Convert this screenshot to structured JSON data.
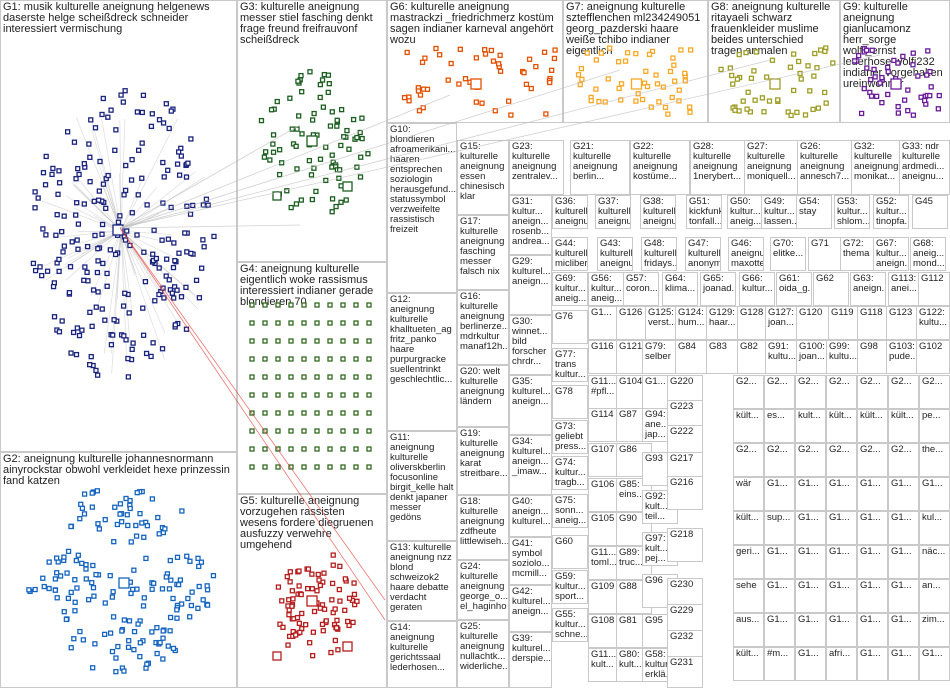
{
  "groups": [
    {
      "id": "G1",
      "text": "G1: musik kulturelle aneignung helgenews daserste helge scheißdreck schneider interessiert vermischung",
      "color": "#1a237e"
    },
    {
      "id": "G2",
      "text": "G2: aneignung kulturelle johannesnormann ainyrockstar obwohl verkleidet hexe prinzessin fand katzen",
      "color": "#1565c0"
    },
    {
      "id": "G3",
      "text": "G3: kulturelle aneignung messer stiel fasching denkt frage freund freifrauvonf scheißdreck",
      "color": "#1b5e20"
    },
    {
      "id": "G4",
      "text": "G4: aneignung kulturelle eigentlich woke rassismus interessiert indianer gerade blondieren 70",
      "color": "#33691e"
    },
    {
      "id": "G5",
      "text": "G5: kulturelle aneignung vorzugehen rassisten wesens fordere diegruenen ausfuzzy verwehre umgehend",
      "color": "#b71c1c"
    },
    {
      "id": "G6",
      "text": "G6: kulturelle aneignung mastrackzi _friedrichmerz kostüm sagen indianer karneval angehört wozu",
      "color": "#e65100"
    },
    {
      "id": "G7",
      "text": "G7: aneignung kulturelle sztefflenchen ml234249051 georg_pazderski haare weiße tchibo indianer eigentlich",
      "color": "#f9a825"
    },
    {
      "id": "G8",
      "text": "G8: aneignung kulturelle ritayaeli schwarz frauenkleider muslime beides unterschied tragen anmalen",
      "color": "#9e9d24"
    },
    {
      "id": "G9",
      "text": "G9: kulturelle aneignung gianlucamonz herr_sorge wolff_ernst lederhose wolfi232 indianer vorgehalten ureinwohner",
      "color": "#6a1b9a"
    },
    {
      "id": "G10",
      "text": "G10: blondieren afroamerikani... haaren entsprechen soziologin herausgefund... statussymbol verzweifelte rassistisch freizeit",
      "color": "#555555"
    },
    {
      "id": "G11",
      "text": "G11: aneignung kulturelle oliverskberlin focusonline birgit_kelle halt denkt japaner messer gedöns",
      "color": "#555555"
    },
    {
      "id": "G12",
      "text": "G12: aneignung kulturelle khalltueten_ag fritz_panko haare purpurgracke suellentrinkt geschlechtlic...",
      "color": "#555555"
    },
    {
      "id": "G13",
      "text": "G13: kulturelle aneignung nzz blond schweizok2 haare debatte verdacht geraten",
      "color": "#555555"
    },
    {
      "id": "G14",
      "text": "G14: aneignung kulturelle gerichtssaal lederhosen...",
      "color": "#555555"
    },
    {
      "id": "G15",
      "text": "G15: kulturelle aneignung essen chinesisch klar",
      "color": "#555555"
    },
    {
      "id": "G16",
      "text": "G16: kulturelle aneignung berlinerze... mdrkultur manaf12h...",
      "color": "#555555"
    },
    {
      "id": "G17",
      "text": "G17: kulturelle aneignung fasching messer falsch nix",
      "color": "#555555"
    },
    {
      "id": "G18",
      "text": "G18: kulturelle aneignung zdfheute littlewiseh...",
      "color": "#555555"
    },
    {
      "id": "G19",
      "text": "G19: kulturelle aneignung karat streitbare...",
      "color": "#555555"
    },
    {
      "id": "G20",
      "text": "G20: welt kulturelle aneignung ländern",
      "color": "#555555"
    },
    {
      "id": "G21",
      "text": "G21: kulturelle aneignung berlin...",
      "color": "#555555"
    },
    {
      "id": "G22",
      "text": "G22: kulturelle aneignung kostüme...",
      "color": "#555555"
    },
    {
      "id": "G23",
      "text": "G23: kulturelle aneignung zentralev...",
      "color": "#555555"
    },
    {
      "id": "G24",
      "text": "G24: kulturelle aneignung george_o... el_haginho",
      "color": "#555555"
    },
    {
      "id": "G25",
      "text": "G25: kulturelle aneignung nullachtk... widerliche...",
      "color": "#555555"
    },
    {
      "id": "G26",
      "text": "G26: kulturelle aneignung annesch7...",
      "color": "#555555"
    },
    {
      "id": "G27",
      "text": "G27: kulturelle aneignung moniquell...",
      "color": "#555555"
    },
    {
      "id": "G28",
      "text": "G28: kulturelle aneignung 1nerybert...",
      "color": "#555555"
    },
    {
      "id": "G29",
      "text": "G29: kulturel... aneign...",
      "color": "#555555"
    },
    {
      "id": "G30",
      "text": "G30: winnet... bild forscher chrdr...",
      "color": "#555555"
    },
    {
      "id": "G31",
      "text": "G31: kultur... aneign... rosenb... andrea...",
      "color": "#555555"
    },
    {
      "id": "G32",
      "text": "G32: kulturelle aneignung monikat...",
      "color": "#555555"
    },
    {
      "id": "G33",
      "text": "G33: ndr kulturelle ardmedi... aneignu...",
      "color": "#555555"
    },
    {
      "id": "G34",
      "text": "G34: kulturel... aneign... _imaw...",
      "color": "#555555"
    },
    {
      "id": "G35",
      "text": "G35: kulturel... aneign...",
      "color": "#555555"
    },
    {
      "id": "G36",
      "text": "G36: kulturelle aneignu...",
      "color": "#555555"
    },
    {
      "id": "G37",
      "text": "G37: kulturelle aneignu...",
      "color": "#555555"
    },
    {
      "id": "G38",
      "text": "G38: kulturelle aneignu...",
      "color": "#555555"
    },
    {
      "id": "G39",
      "text": "G39: kulturel... derspie...",
      "color": "#555555"
    },
    {
      "id": "G40",
      "text": "G40: aneign... kulturel...",
      "color": "#555555"
    },
    {
      "id": "G41",
      "text": "G41: symbol soziolo... mcmill...",
      "color": "#555555"
    },
    {
      "id": "G42",
      "text": "G42: kulturel... aneign...",
      "color": "#555555"
    },
    {
      "id": "G43",
      "text": "G43: kulturelle aneignu...",
      "color": "#555555"
    },
    {
      "id": "G44",
      "text": "G44: kulturelle micliber...",
      "color": "#555555"
    },
    {
      "id": "G45",
      "text": "G45",
      "color": "#555555"
    },
    {
      "id": "G46",
      "text": "G46: aneignu... maxotte...",
      "color": "#555555"
    },
    {
      "id": "G47",
      "text": "G47: kulturelle anonym...",
      "color": "#555555"
    },
    {
      "id": "G48",
      "text": "G48: kulturelle fridays...",
      "color": "#555555"
    },
    {
      "id": "G49",
      "text": "G49: kultur... lassen...",
      "color": "#555555"
    },
    {
      "id": "G50",
      "text": "G50: kultur... aneig...",
      "color": "#555555"
    },
    {
      "id": "G51",
      "text": "G51: kickfunk tonfall...",
      "color": "#555555"
    },
    {
      "id": "G52",
      "text": "G52: kultur... tinopfa...",
      "color": "#555555"
    },
    {
      "id": "G53",
      "text": "G53: kultur... shlom...",
      "color": "#555555"
    },
    {
      "id": "G54",
      "text": "G54: stay",
      "color": "#555555"
    },
    {
      "id": "G55",
      "text": "G55: kultur... schne...",
      "color": "#555555"
    },
    {
      "id": "G56",
      "text": "G56: kultur... aneig...",
      "color": "#555555"
    },
    {
      "id": "G57",
      "text": "G57: coron...",
      "color": "#555555"
    },
    {
      "id": "G58",
      "text": "G58: kultur... erklä...",
      "color": "#555555"
    },
    {
      "id": "G59",
      "text": "G59: kultur... sport...",
      "color": "#555555"
    },
    {
      "id": "G60",
      "text": "G60",
      "color": "#555555"
    },
    {
      "id": "G61",
      "text": "G61: oida_g...",
      "color": "#555555"
    },
    {
      "id": "G62",
      "text": "G62",
      "color": "#555555"
    },
    {
      "id": "G63",
      "text": "G63: aneign...",
      "color": "#555555"
    },
    {
      "id": "G64",
      "text": "G64: klima...",
      "color": "#555555"
    },
    {
      "id": "G65",
      "text": "G65: joanad...",
      "color": "#555555"
    },
    {
      "id": "G66",
      "text": "G66: kultur...",
      "color": "#555555"
    },
    {
      "id": "G67",
      "text": "G67: kultur... aneign...",
      "color": "#555555"
    },
    {
      "id": "G68",
      "text": "G68: aneig... mond...",
      "color": "#555555"
    },
    {
      "id": "G69",
      "text": "G69: kultur... aneig...",
      "color": "#555555"
    },
    {
      "id": "G70",
      "text": "G70: elitke...",
      "color": "#555555"
    },
    {
      "id": "G71",
      "text": "G71",
      "color": "#555555"
    },
    {
      "id": "G72",
      "text": "G72: thema",
      "color": "#555555"
    },
    {
      "id": "G73",
      "text": "G73: geliebt press...",
      "color": "#555555"
    },
    {
      "id": "G74",
      "text": "G74: kultur... tragb...",
      "color": "#555555"
    },
    {
      "id": "G75",
      "text": "G75: sonn... aneig...",
      "color": "#555555"
    },
    {
      "id": "G76",
      "text": "G76",
      "color": "#555555"
    },
    {
      "id": "G77",
      "text": "G77: trans kultur...",
      "color": "#555555"
    },
    {
      "id": "G78",
      "text": "G78",
      "color": "#555555"
    },
    {
      "id": "G79",
      "text": "G79: selber",
      "color": "#555555"
    },
    {
      "id": "G80",
      "text": "G80: kult...",
      "color": "#555555"
    },
    {
      "id": "G81",
      "text": "G81",
      "color": "#555555"
    },
    {
      "id": "G82",
      "text": "G82",
      "color": "#555555"
    },
    {
      "id": "G83",
      "text": "G83",
      "color": "#555555"
    },
    {
      "id": "G84",
      "text": "G84",
      "color": "#555555"
    },
    {
      "id": "G85",
      "text": "G85: eins...",
      "color": "#555555"
    },
    {
      "id": "G86",
      "text": "G86",
      "color": "#555555"
    },
    {
      "id": "G87",
      "text": "G87",
      "color": "#555555"
    },
    {
      "id": "G88",
      "text": "G88",
      "color": "#555555"
    },
    {
      "id": "G89",
      "text": "G89: truc...",
      "color": "#555555"
    },
    {
      "id": "G90",
      "text": "G90",
      "color": "#555555"
    },
    {
      "id": "G91",
      "text": "G91: kultu...",
      "color": "#555555"
    },
    {
      "id": "G92",
      "text": "G92: kult... teil...",
      "color": "#555555"
    },
    {
      "id": "G93",
      "text": "G93",
      "color": "#555555"
    },
    {
      "id": "G94",
      "text": "G94: ane... jap...",
      "color": "#555555"
    },
    {
      "id": "G95",
      "text": "G95",
      "color": "#555555"
    },
    {
      "id": "G96",
      "text": "G96",
      "color": "#555555"
    },
    {
      "id": "G97",
      "text": "G97: kult... pej...",
      "color": "#555555"
    },
    {
      "id": "G98",
      "text": "G98",
      "color": "#555555"
    },
    {
      "id": "G99",
      "text": "G99: kultu...",
      "color": "#555555"
    },
    {
      "id": "G100",
      "text": "G100: joan...",
      "color": "#555555"
    },
    {
      "id": "G101",
      "text": "G1...",
      "color": "#555555"
    },
    {
      "id": "G102",
      "text": "G102",
      "color": "#555555"
    },
    {
      "id": "G103",
      "text": "G103: pude...",
      "color": "#555555"
    },
    {
      "id": "G104",
      "text": "G104",
      "color": "#555555"
    },
    {
      "id": "G105",
      "text": "G105",
      "color": "#555555"
    },
    {
      "id": "G106",
      "text": "G106",
      "color": "#555555"
    },
    {
      "id": "G107",
      "text": "G107",
      "color": "#555555"
    },
    {
      "id": "G108",
      "text": "G108",
      "color": "#555555"
    },
    {
      "id": "G109",
      "text": "G109",
      "color": "#555555"
    },
    {
      "id": "G110",
      "text": "G11... #pfl...",
      "color": "#555555"
    },
    {
      "id": "G111",
      "text": "G11... toml...",
      "color": "#555555"
    },
    {
      "id": "G112",
      "text": "G112",
      "color": "#555555"
    },
    {
      "id": "G113",
      "text": "G113: anei...",
      "color": "#555555"
    },
    {
      "id": "G114",
      "text": "G114",
      "color": "#555555"
    },
    {
      "id": "G115",
      "text": "G11... kult...",
      "color": "#555555"
    },
    {
      "id": "G116",
      "text": "G116",
      "color": "#555555"
    },
    {
      "id": "G117",
      "text": "G1...",
      "color": "#555555"
    },
    {
      "id": "G118",
      "text": "G118",
      "color": "#555555"
    },
    {
      "id": "G119",
      "text": "G119",
      "color": "#555555"
    },
    {
      "id": "G120",
      "text": "G120",
      "color": "#555555"
    },
    {
      "id": "G121",
      "text": "G121",
      "color": "#555555"
    },
    {
      "id": "G122",
      "text": "G122: kultu...",
      "color": "#555555"
    },
    {
      "id": "G123",
      "text": "G123",
      "color": "#555555"
    },
    {
      "id": "G124",
      "text": "G124: hum...",
      "color": "#555555"
    },
    {
      "id": "G125",
      "text": "G125: verst...",
      "color": "#555555"
    },
    {
      "id": "G126",
      "text": "G126",
      "color": "#555555"
    },
    {
      "id": "G127",
      "text": "G127: joan...",
      "color": "#555555"
    },
    {
      "id": "G128",
      "text": "G128",
      "color": "#555555"
    },
    {
      "id": "G129",
      "text": "G129: haar...",
      "color": "#555555"
    },
    {
      "id": "G216",
      "text": "G216",
      "color": "#555555"
    },
    {
      "id": "G217",
      "text": "G217",
      "color": "#555555"
    },
    {
      "id": "G218",
      "text": "G218",
      "color": "#555555"
    },
    {
      "id": "G220",
      "text": "G220",
      "color": "#555555"
    },
    {
      "id": "G222",
      "text": "G222",
      "color": "#555555"
    },
    {
      "id": "G223",
      "text": "G223",
      "color": "#555555"
    },
    {
      "id": "G229",
      "text": "G229",
      "color": "#555555"
    },
    {
      "id": "G230",
      "text": "G230",
      "color": "#555555"
    },
    {
      "id": "G231",
      "text": "G231",
      "color": "#555555"
    },
    {
      "id": "G232",
      "text": "G232",
      "color": "#555555"
    }
  ],
  "small_grid_labels": [
    [
      "G2...",
      "G2...",
      "G2...",
      "G2...",
      "G2...",
      "G2...",
      "G2..."
    ],
    [
      "kült...",
      "es...",
      "kult...",
      "kült...",
      "kült...",
      "kült...",
      "pe..."
    ],
    [
      "G2...",
      "G2...",
      "G2...",
      "G2...",
      "G2...",
      "G2...",
      "the..."
    ],
    [
      "wär",
      "G1...",
      "G1...",
      "G1...",
      "G1...",
      "G1...",
      "G1..."
    ],
    [
      "kült...",
      "sup...",
      "G1...",
      "G1...",
      "G1...",
      "G1...",
      "kul..."
    ],
    [
      "geri...",
      "G1...",
      "G1...",
      "G1...",
      "G1...",
      "G1...",
      "näc..."
    ],
    [
      "sehe",
      "G1...",
      "G1...",
      "G1...",
      "G1...",
      "G1...",
      "an..."
    ],
    [
      "aus...",
      "G1...",
      "G1...",
      "G1...",
      "G1...",
      "G1...",
      "zim..."
    ],
    [
      "kült...",
      "#m...",
      "G1...",
      "afri...",
      "G1...",
      "G1...",
      "G1..."
    ]
  ]
}
